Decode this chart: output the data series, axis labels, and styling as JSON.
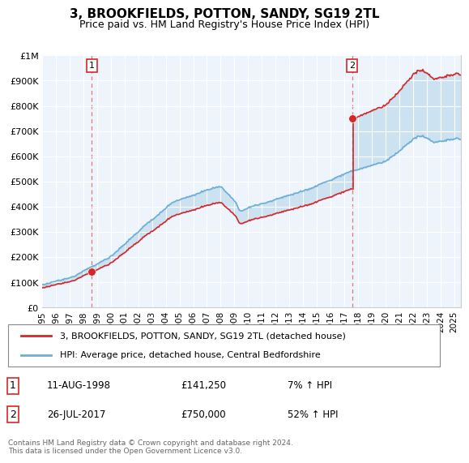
{
  "title": "3, BROOKFIELDS, POTTON, SANDY, SG19 2TL",
  "subtitle": "Price paid vs. HM Land Registry's House Price Index (HPI)",
  "legend_line1": "3, BROOKFIELDS, POTTON, SANDY, SG19 2TL (detached house)",
  "legend_line2": "HPI: Average price, detached house, Central Bedfordshire",
  "transaction1_label": "1",
  "transaction1_date": "11-AUG-1998",
  "transaction1_price": "£141,250",
  "transaction1_hpi": "7% ↑ HPI",
  "transaction2_label": "2",
  "transaction2_date": "26-JUL-2017",
  "transaction2_price": "£750,000",
  "transaction2_hpi": "52% ↑ HPI",
  "footnote": "Contains HM Land Registry data © Crown copyright and database right 2024.\nThis data is licensed under the Open Government Licence v3.0.",
  "hpi_color": "#6baed6",
  "property_color": "#d62728",
  "fill_color": "#ddeeff",
  "marker_color": "#d62728",
  "ylim": [
    0,
    1000000
  ],
  "yticks": [
    0,
    100000,
    200000,
    300000,
    400000,
    500000,
    600000,
    700000,
    800000,
    900000,
    1000000
  ],
  "ytick_labels": [
    "£0",
    "£100K",
    "£200K",
    "£300K",
    "£400K",
    "£500K",
    "£600K",
    "£700K",
    "£800K",
    "£900K",
    "£1M"
  ],
  "transaction1_x": 1998.617,
  "transaction1_y": 141250,
  "transaction2_x": 2017.567,
  "transaction2_y": 750000,
  "vline1_x": 1998.617,
  "vline2_x": 2017.567,
  "xlim_left": 1995.0,
  "xlim_right": 2025.5,
  "chart_bg": "#eef4fb"
}
